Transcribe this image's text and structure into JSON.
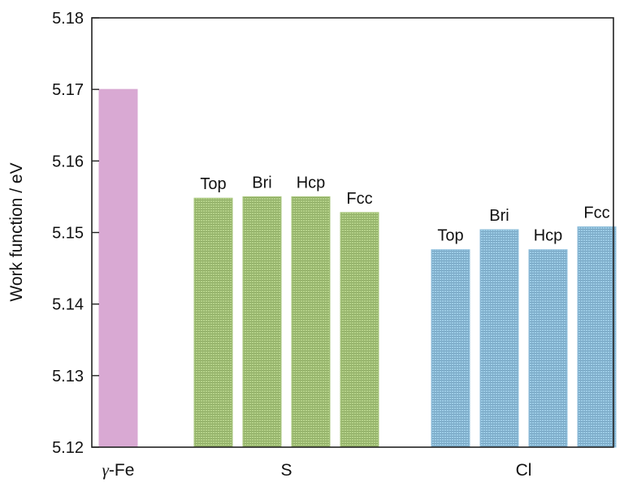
{
  "chart_data": {
    "type": "bar",
    "ylabel": "Work function / eV",
    "ylim": [
      5.12,
      5.18
    ],
    "yticks": [
      "5.12",
      "5.13",
      "5.14",
      "5.15",
      "5.16",
      "5.17",
      "5.18"
    ],
    "groups": [
      {
        "label": "γ-Fe",
        "label_prefix": "γ",
        "label_suffix": "-Fe",
        "color": "#d9a9d3",
        "bars": [
          {
            "label": "",
            "value": 5.17
          }
        ]
      },
      {
        "label": "S",
        "color": "#a9c77e",
        "bars": [
          {
            "label": "Top",
            "value": 5.1548
          },
          {
            "label": "Bri",
            "value": 5.155
          },
          {
            "label": "Hcp",
            "value": 5.155
          },
          {
            "label": "Fcc",
            "value": 5.1528
          }
        ]
      },
      {
        "label": "Cl",
        "color": "#8fbfdc",
        "bars": [
          {
            "label": "Top",
            "value": 5.1476
          },
          {
            "label": "Bri",
            "value": 5.1504
          },
          {
            "label": "Hcp",
            "value": 5.1476
          },
          {
            "label": "Fcc",
            "value": 5.1508
          }
        ]
      }
    ]
  }
}
